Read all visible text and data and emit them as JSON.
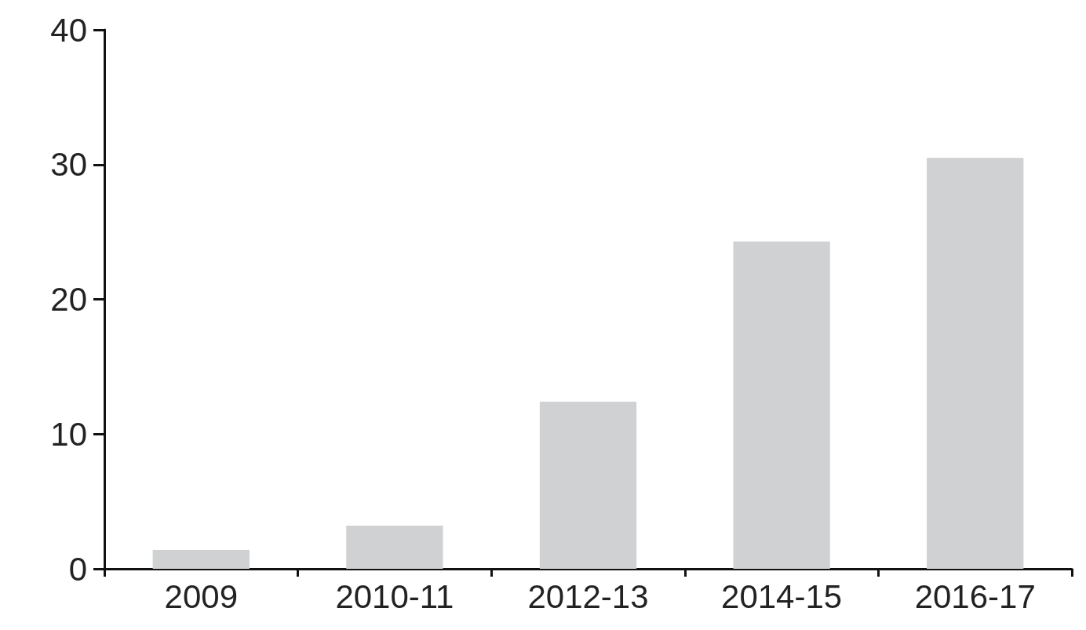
{
  "chart_data": {
    "type": "bar",
    "categories": [
      "2009",
      "2010-11",
      "2012-13",
      "2014-15",
      "2016-17"
    ],
    "values": [
      1.4,
      3.2,
      12.4,
      24.3,
      30.5
    ],
    "color": "#d0d1d3",
    "ylim": [
      0,
      40
    ],
    "yticks": [
      0,
      10,
      20,
      30,
      40
    ],
    "grid": false
  }
}
